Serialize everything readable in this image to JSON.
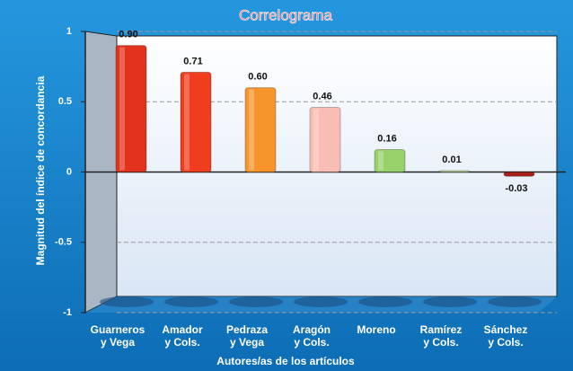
{
  "chart_data": {
    "type": "bar",
    "title": "Correlograma",
    "y_label": "Magnitud del índice de concordancia",
    "x_label": "Autores/as de los artículos",
    "categories": [
      "Guarneros\ny Vega",
      "Amador\ny Cols.",
      "Pedraza\ny Vega",
      "Aragón\ny Cols.",
      "Moreno",
      "Ramírez\ny Cols.",
      "Sánchez\ny Cols."
    ],
    "values": [
      0.9,
      0.71,
      0.6,
      0.46,
      0.16,
      0.01,
      -0.03
    ],
    "value_labels": [
      "0.90",
      "0.71",
      "0.60",
      "0.46",
      "0.16",
      "0.01",
      "-0.03"
    ],
    "colors": [
      "#e3321b",
      "#f03d1e",
      "#f7952c",
      "#f8bdb5",
      "#98d06a",
      "#c0dca0",
      "#a8201a"
    ],
    "ylim": [
      -1,
      1
    ],
    "yticks": [
      1,
      0.5,
      0,
      -0.5,
      -1
    ],
    "grid": true
  }
}
